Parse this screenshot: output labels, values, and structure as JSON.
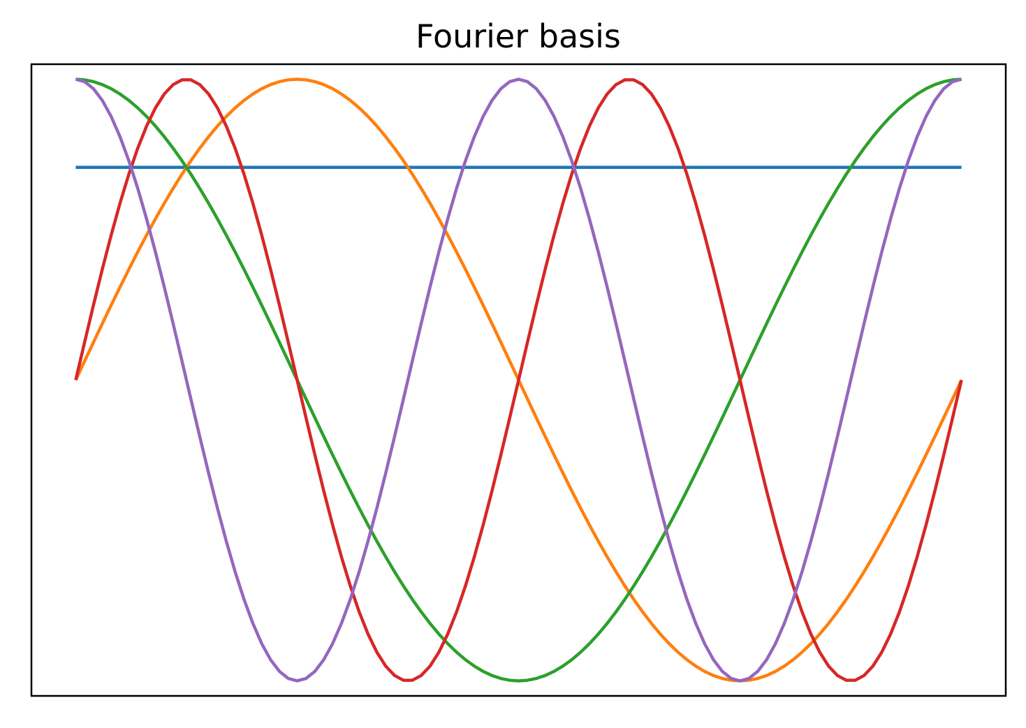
{
  "chart_data": {
    "type": "line",
    "title": "Fourier basis",
    "xlabel": "",
    "ylabel": "",
    "xlim": [
      -0.05,
      1.05
    ],
    "ylim": [
      -1.05,
      1.05
    ],
    "x_ticks": [],
    "y_ticks": [],
    "grid": false,
    "legend": "none",
    "x_range": [
      0,
      1
    ],
    "samples": 101,
    "series": [
      {
        "function": "constant",
        "frequency": 0,
        "value": 0.7071,
        "color": "#1f77b4"
      },
      {
        "function": "sin",
        "frequency": 1,
        "color": "#ff7f0e"
      },
      {
        "function": "cos",
        "frequency": 1,
        "color": "#2ca02c"
      },
      {
        "function": "sin",
        "frequency": 2,
        "color": "#d62728"
      },
      {
        "function": "cos",
        "frequency": 2,
        "color": "#9467bd"
      }
    ]
  }
}
